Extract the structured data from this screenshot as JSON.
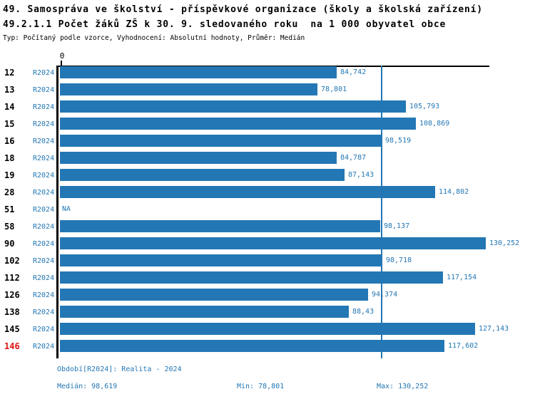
{
  "header": {
    "title_line1": "49. Samospráva ve školství - příspěvkové organizace (školy a školská zařízení)",
    "title_line2": "49.2.1.1 Počet žáků ZŠ k 30. 9. sledovaného roku  na 1 000 obyvatel obce",
    "meta_line": "Typ: Počítaný podle vzorce, Vyhodnocení: Absolutní hodnoty, Průměr: Medián"
  },
  "chart_data": {
    "type": "bar",
    "orientation": "horizontal",
    "zero_tick": "0",
    "series_label": "R2024",
    "categories": [
      "12",
      "13",
      "14",
      "15",
      "16",
      "18",
      "19",
      "28",
      "51",
      "58",
      "90",
      "102",
      "112",
      "126",
      "138",
      "145",
      "146"
    ],
    "values": [
      84.742,
      78.801,
      105.793,
      108.869,
      98.519,
      84.787,
      87.143,
      114.802,
      null,
      98.137,
      130.252,
      98.718,
      117.154,
      94.374,
      88.43,
      127.143,
      117.602
    ],
    "value_labels": [
      "84,742",
      "78,801",
      "105,793",
      "108,869",
      "98,519",
      "84,787",
      "87,143",
      "114,802",
      "NA",
      "98,137",
      "130,252",
      "98,718",
      "117,154",
      "94,374",
      "88,43",
      "127,143",
      "117,602"
    ],
    "highlight_category": "146",
    "median_value": 98.619,
    "xlim": [
      0,
      130.252
    ],
    "legend_position": "none",
    "grid": false,
    "colors": {
      "bar": "#2377b4",
      "median_line": "#2377b4",
      "value_label": "#2377b4",
      "series_label": "#2377b4",
      "category_label": "#000000",
      "highlight_category_label": "#e11414",
      "axis": "#000000"
    }
  },
  "footer": {
    "period": "Období[R2024]: Realita - 2024",
    "median": "Medián: 98,619",
    "min": "Min: 78,801",
    "max": "Max: 130,252"
  }
}
